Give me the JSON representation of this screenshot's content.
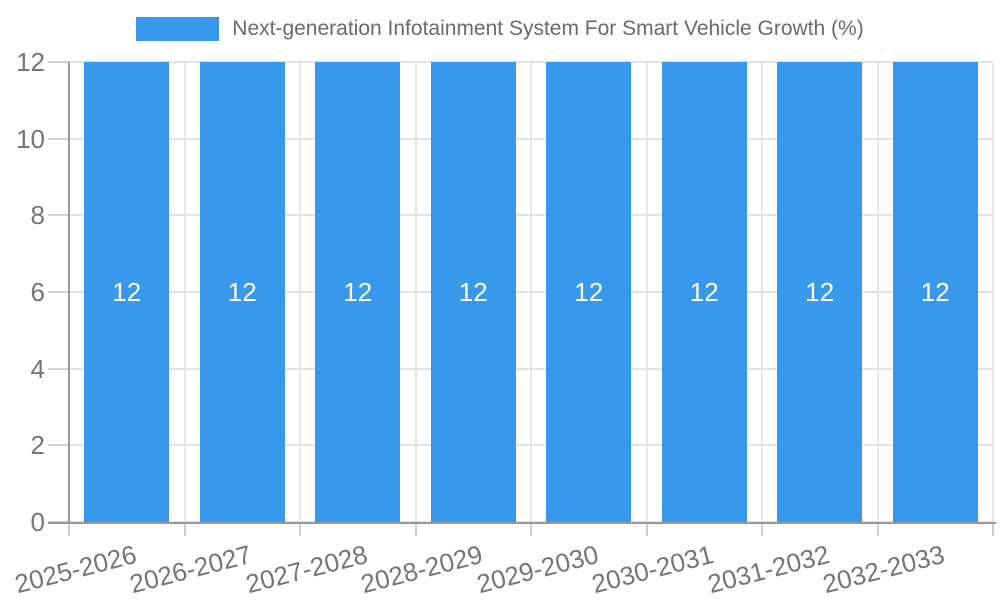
{
  "legend": {
    "label": "Next-generation Infotainment System For Smart Vehicle Growth (%)",
    "swatch_color": "#3898ec"
  },
  "chart_data": {
    "type": "bar",
    "title": "Next-generation Infotainment System For Smart Vehicle Growth (%)",
    "categories": [
      "2025-2026",
      "2026-2027",
      "2027-2028",
      "2028-2029",
      "2029-2030",
      "2030-2031",
      "2031-2032",
      "2032-2033"
    ],
    "values": [
      12,
      12,
      12,
      12,
      12,
      12,
      12,
      12
    ],
    "bar_value_labels": [
      "12",
      "12",
      "12",
      "12",
      "12",
      "12",
      "12",
      "12"
    ],
    "xlabel": "",
    "ylabel": "",
    "ylim": [
      0,
      12
    ],
    "yticks": [
      0,
      2,
      4,
      6,
      8,
      10,
      12
    ],
    "y_tick_labels": [
      "0",
      "2",
      "4",
      "6",
      "8",
      "10",
      "12"
    ],
    "grid": "horizontal-and-vertical",
    "legend_position": "top-center",
    "x_label_rotation_deg": -14.5,
    "colors": {
      "bar": "#3898ec",
      "bar_value_text": "#ffffff",
      "gridline": "#e3e3e3",
      "axis_line": "#999999",
      "tick_text": "#757575",
      "legend_text": "#6a6a6a",
      "background": "#ffffff"
    }
  }
}
